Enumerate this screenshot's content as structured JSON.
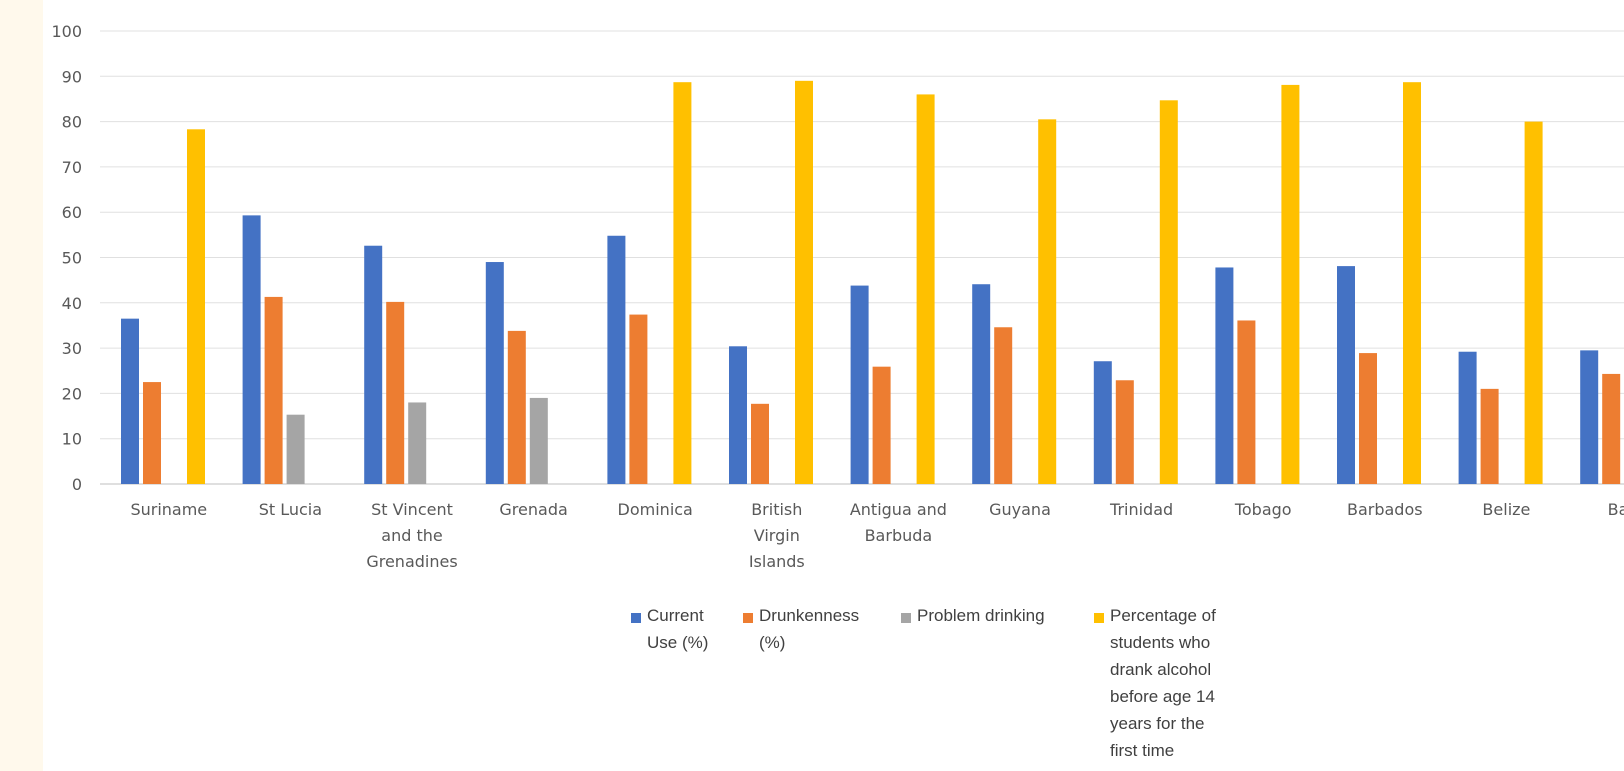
{
  "chart_data": {
    "type": "bar",
    "title": "",
    "xlabel": "",
    "ylabel": "",
    "ylim": [
      0,
      100
    ],
    "yticks": [
      0,
      10,
      20,
      30,
      40,
      50,
      60,
      70,
      80,
      90,
      100
    ],
    "grid": true,
    "legend_position": "bottom",
    "categories": [
      "Suriname",
      "St Lucia",
      "St Vincent and the Grenadines",
      "Grenada",
      "Dominica",
      "British Virgin Islands",
      "Antigua and Barbuda",
      "Guyana",
      "Trinidad",
      "Tobago",
      "Barbados",
      "Belize",
      "Baha"
    ],
    "category_lines": [
      [
        "Suriname"
      ],
      [
        "St Lucia"
      ],
      [
        "St Vincent",
        "and the",
        "Grenadines"
      ],
      [
        "Grenada"
      ],
      [
        "Dominica"
      ],
      [
        "British",
        "Virgin",
        "Islands"
      ],
      [
        "Antigua and",
        "Barbuda"
      ],
      [
        "Guyana"
      ],
      [
        "Trinidad"
      ],
      [
        "Tobago"
      ],
      [
        "Barbados"
      ],
      [
        "Belize"
      ],
      [
        "Baha"
      ]
    ],
    "series": [
      {
        "name": "Current Use (%)",
        "legend_label": "Current\nUse (%)",
        "color": "#4472c4",
        "values": [
          36.5,
          59.3,
          52.6,
          49,
          54.8,
          30.4,
          43.8,
          44.1,
          27.1,
          47.8,
          48.1,
          29.2,
          29.5
        ]
      },
      {
        "name": "Drunkenness (%)",
        "legend_label": "Drunkenness\n(%)",
        "color": "#ed7d31",
        "values": [
          22.5,
          41.3,
          40.2,
          33.8,
          37.4,
          17.7,
          25.9,
          34.6,
          22.9,
          36.1,
          28.9,
          21,
          24.3
        ]
      },
      {
        "name": "Problem drinking",
        "legend_label": "Problem drinking",
        "color": "#a5a5a5",
        "values": [
          null,
          15.3,
          18,
          19,
          null,
          null,
          null,
          null,
          null,
          null,
          null,
          null,
          null
        ]
      },
      {
        "name": "Percentage of students who drank alcohol before age 14 years for the first time",
        "legend_label": "Percentage of\nstudents who\ndrank alcohol\nbefore age 14\nyears for the\nfirst time",
        "color": "#ffc000",
        "values": [
          78.3,
          null,
          null,
          null,
          88.7,
          89,
          86,
          80.5,
          84.7,
          88.1,
          88.7,
          80,
          null
        ]
      }
    ]
  }
}
